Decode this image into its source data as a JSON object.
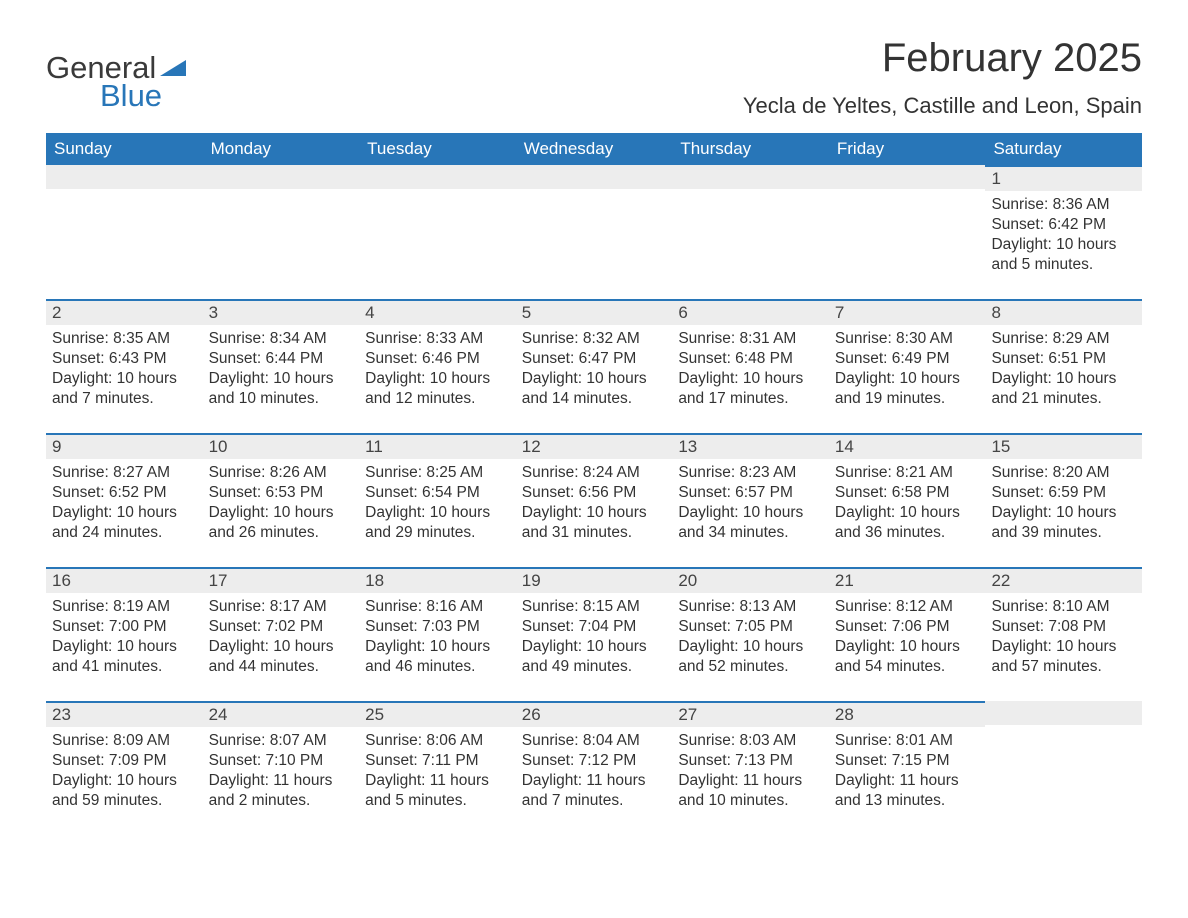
{
  "brand": {
    "part1": "General",
    "part2": "Blue"
  },
  "title": "February 2025",
  "location": "Yecla de Yeltes, Castille and Leon, Spain",
  "colors": {
    "accent": "#2876b8",
    "header_bg": "#2876b8",
    "weekday_text": "#ffffff",
    "daynum_bg": "#ededed",
    "text": "#333333"
  },
  "weekdays": [
    "Sunday",
    "Monday",
    "Tuesday",
    "Wednesday",
    "Thursday",
    "Friday",
    "Saturday"
  ],
  "layout": {
    "columns": 7,
    "rows": 5,
    "first_weekday_index": 6
  },
  "weeks": [
    [
      {
        "empty": true
      },
      {
        "empty": true
      },
      {
        "empty": true
      },
      {
        "empty": true
      },
      {
        "empty": true
      },
      {
        "empty": true
      },
      {
        "day": "1",
        "sunrise": "Sunrise: 8:36 AM",
        "sunset": "Sunset: 6:42 PM",
        "daylight": "Daylight: 10 hours and 5 minutes."
      }
    ],
    [
      {
        "day": "2",
        "sunrise": "Sunrise: 8:35 AM",
        "sunset": "Sunset: 6:43 PM",
        "daylight": "Daylight: 10 hours and 7 minutes."
      },
      {
        "day": "3",
        "sunrise": "Sunrise: 8:34 AM",
        "sunset": "Sunset: 6:44 PM",
        "daylight": "Daylight: 10 hours and 10 minutes."
      },
      {
        "day": "4",
        "sunrise": "Sunrise: 8:33 AM",
        "sunset": "Sunset: 6:46 PM",
        "daylight": "Daylight: 10 hours and 12 minutes."
      },
      {
        "day": "5",
        "sunrise": "Sunrise: 8:32 AM",
        "sunset": "Sunset: 6:47 PM",
        "daylight": "Daylight: 10 hours and 14 minutes."
      },
      {
        "day": "6",
        "sunrise": "Sunrise: 8:31 AM",
        "sunset": "Sunset: 6:48 PM",
        "daylight": "Daylight: 10 hours and 17 minutes."
      },
      {
        "day": "7",
        "sunrise": "Sunrise: 8:30 AM",
        "sunset": "Sunset: 6:49 PM",
        "daylight": "Daylight: 10 hours and 19 minutes."
      },
      {
        "day": "8",
        "sunrise": "Sunrise: 8:29 AM",
        "sunset": "Sunset: 6:51 PM",
        "daylight": "Daylight: 10 hours and 21 minutes."
      }
    ],
    [
      {
        "day": "9",
        "sunrise": "Sunrise: 8:27 AM",
        "sunset": "Sunset: 6:52 PM",
        "daylight": "Daylight: 10 hours and 24 minutes."
      },
      {
        "day": "10",
        "sunrise": "Sunrise: 8:26 AM",
        "sunset": "Sunset: 6:53 PM",
        "daylight": "Daylight: 10 hours and 26 minutes."
      },
      {
        "day": "11",
        "sunrise": "Sunrise: 8:25 AM",
        "sunset": "Sunset: 6:54 PM",
        "daylight": "Daylight: 10 hours and 29 minutes."
      },
      {
        "day": "12",
        "sunrise": "Sunrise: 8:24 AM",
        "sunset": "Sunset: 6:56 PM",
        "daylight": "Daylight: 10 hours and 31 minutes."
      },
      {
        "day": "13",
        "sunrise": "Sunrise: 8:23 AM",
        "sunset": "Sunset: 6:57 PM",
        "daylight": "Daylight: 10 hours and 34 minutes."
      },
      {
        "day": "14",
        "sunrise": "Sunrise: 8:21 AM",
        "sunset": "Sunset: 6:58 PM",
        "daylight": "Daylight: 10 hours and 36 minutes."
      },
      {
        "day": "15",
        "sunrise": "Sunrise: 8:20 AM",
        "sunset": "Sunset: 6:59 PM",
        "daylight": "Daylight: 10 hours and 39 minutes."
      }
    ],
    [
      {
        "day": "16",
        "sunrise": "Sunrise: 8:19 AM",
        "sunset": "Sunset: 7:00 PM",
        "daylight": "Daylight: 10 hours and 41 minutes."
      },
      {
        "day": "17",
        "sunrise": "Sunrise: 8:17 AM",
        "sunset": "Sunset: 7:02 PM",
        "daylight": "Daylight: 10 hours and 44 minutes."
      },
      {
        "day": "18",
        "sunrise": "Sunrise: 8:16 AM",
        "sunset": "Sunset: 7:03 PM",
        "daylight": "Daylight: 10 hours and 46 minutes."
      },
      {
        "day": "19",
        "sunrise": "Sunrise: 8:15 AM",
        "sunset": "Sunset: 7:04 PM",
        "daylight": "Daylight: 10 hours and 49 minutes."
      },
      {
        "day": "20",
        "sunrise": "Sunrise: 8:13 AM",
        "sunset": "Sunset: 7:05 PM",
        "daylight": "Daylight: 10 hours and 52 minutes."
      },
      {
        "day": "21",
        "sunrise": "Sunrise: 8:12 AM",
        "sunset": "Sunset: 7:06 PM",
        "daylight": "Daylight: 10 hours and 54 minutes."
      },
      {
        "day": "22",
        "sunrise": "Sunrise: 8:10 AM",
        "sunset": "Sunset: 7:08 PM",
        "daylight": "Daylight: 10 hours and 57 minutes."
      }
    ],
    [
      {
        "day": "23",
        "sunrise": "Sunrise: 8:09 AM",
        "sunset": "Sunset: 7:09 PM",
        "daylight": "Daylight: 10 hours and 59 minutes."
      },
      {
        "day": "24",
        "sunrise": "Sunrise: 8:07 AM",
        "sunset": "Sunset: 7:10 PM",
        "daylight": "Daylight: 11 hours and 2 minutes."
      },
      {
        "day": "25",
        "sunrise": "Sunrise: 8:06 AM",
        "sunset": "Sunset: 7:11 PM",
        "daylight": "Daylight: 11 hours and 5 minutes."
      },
      {
        "day": "26",
        "sunrise": "Sunrise: 8:04 AM",
        "sunset": "Sunset: 7:12 PM",
        "daylight": "Daylight: 11 hours and 7 minutes."
      },
      {
        "day": "27",
        "sunrise": "Sunrise: 8:03 AM",
        "sunset": "Sunset: 7:13 PM",
        "daylight": "Daylight: 11 hours and 10 minutes."
      },
      {
        "day": "28",
        "sunrise": "Sunrise: 8:01 AM",
        "sunset": "Sunset: 7:15 PM",
        "daylight": "Daylight: 11 hours and 13 minutes."
      },
      {
        "empty": true
      }
    ]
  ]
}
